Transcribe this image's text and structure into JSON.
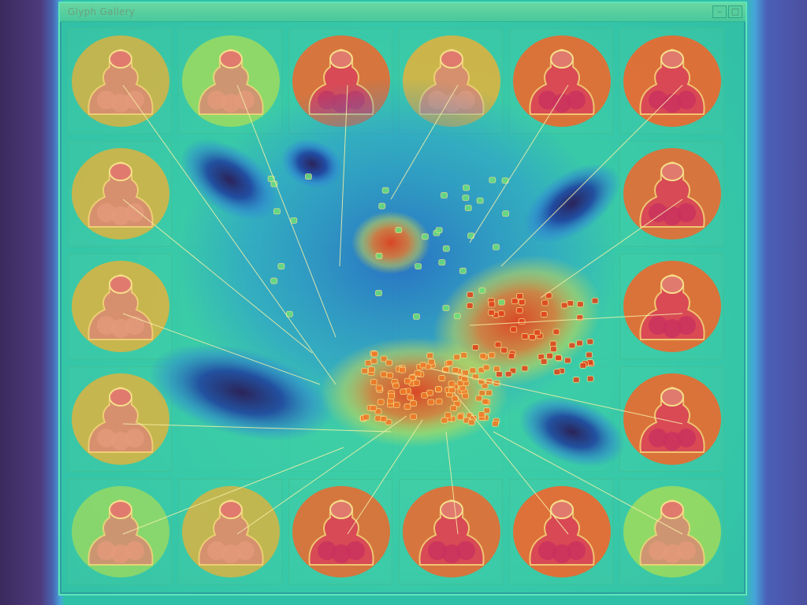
{
  "window": {
    "title": "Glyph Gallery",
    "controls": [
      "–",
      "□"
    ]
  },
  "colors": {
    "hot": "#e2421d",
    "warm": "#f07a28",
    "yellow": "#e8e23c",
    "cool": "#1e3c9e",
    "deep": "#2a1b55",
    "teal": "#34c4a8"
  },
  "gallery": {
    "thumbnail_count": 20
  }
}
